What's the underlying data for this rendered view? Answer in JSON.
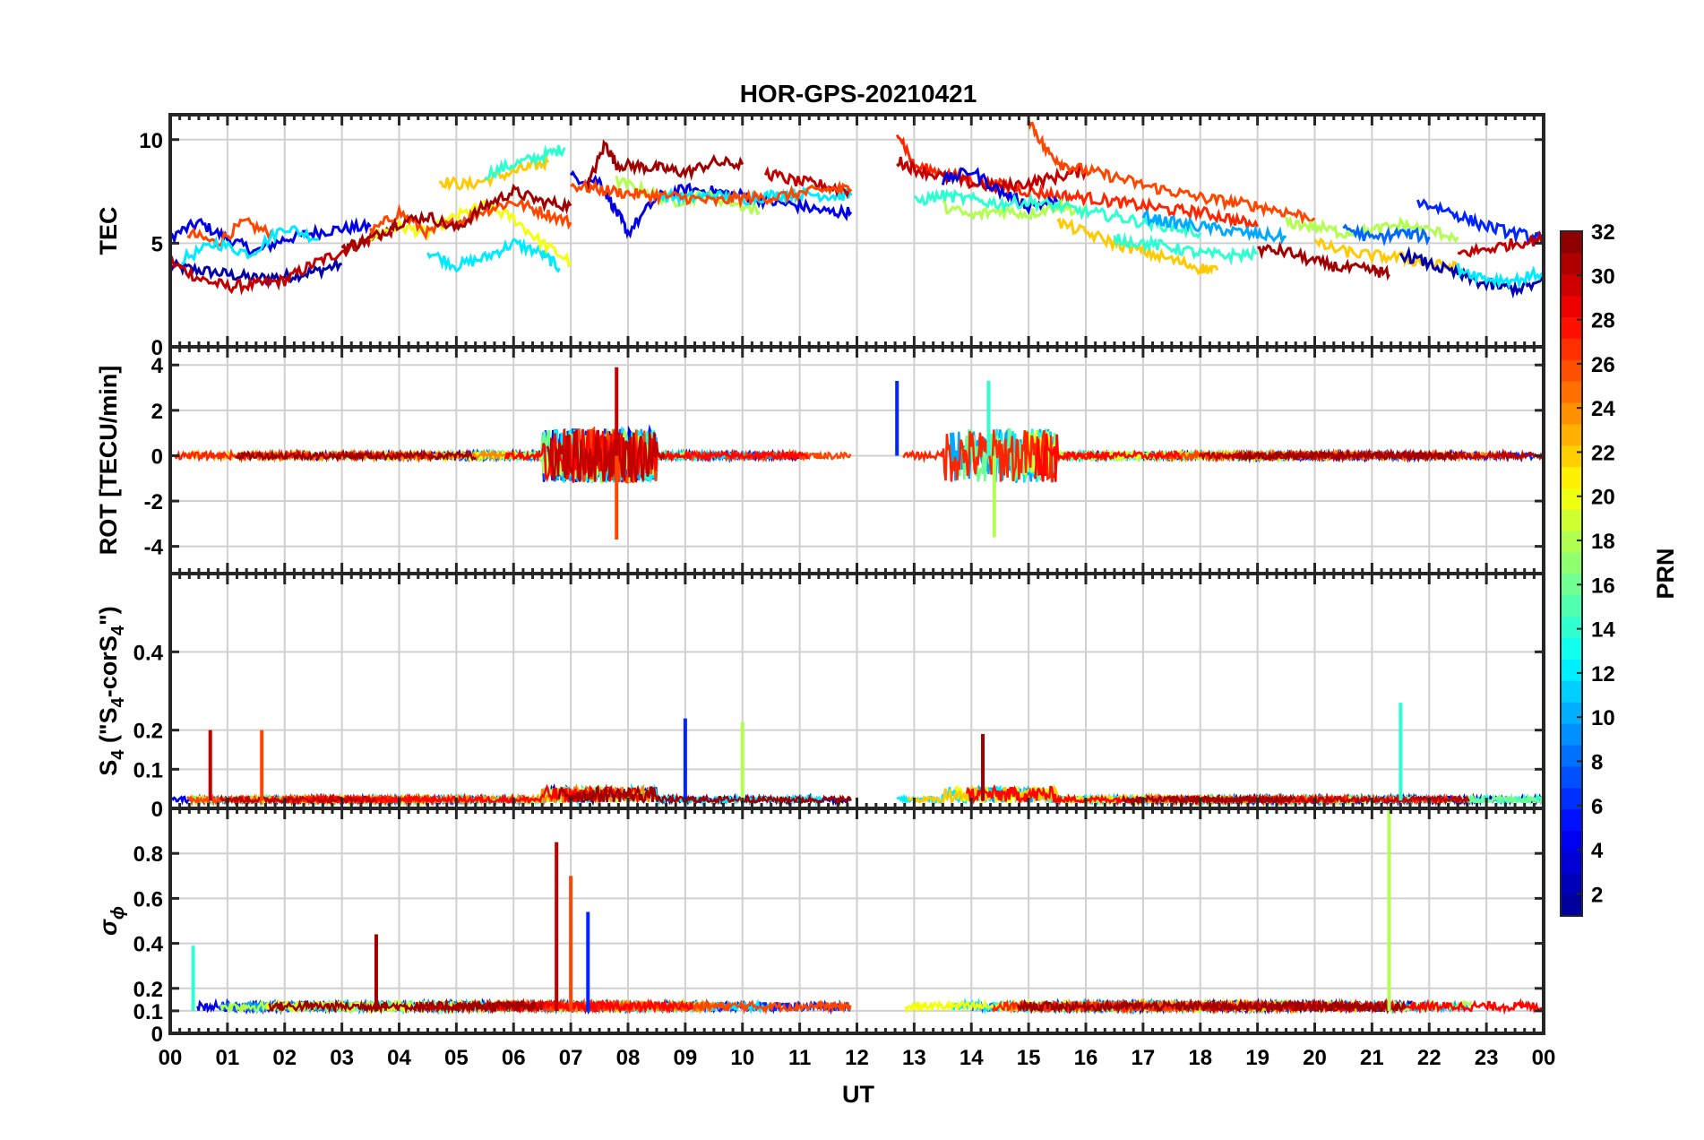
{
  "title": "HOR-GPS-20210421",
  "x_axis": {
    "label": "UT",
    "ticks": [
      "00",
      "01",
      "02",
      "03",
      "04",
      "05",
      "06",
      "07",
      "08",
      "09",
      "10",
      "11",
      "12",
      "13",
      "14",
      "15",
      "16",
      "17",
      "18",
      "19",
      "20",
      "21",
      "22",
      "23",
      "00"
    ],
    "range": [
      0,
      24
    ]
  },
  "colorbar": {
    "label": "PRN",
    "range": [
      1,
      32
    ],
    "ticks": [
      "2",
      "4",
      "6",
      "8",
      "10",
      "12",
      "14",
      "16",
      "18",
      "20",
      "22",
      "24",
      "26",
      "28",
      "30",
      "32"
    ],
    "colormap": [
      "#00008f",
      "#0000ff",
      "#0080ff",
      "#00ffff",
      "#80ff80",
      "#ffff00",
      "#ff8000",
      "#ff0000",
      "#800000"
    ]
  },
  "panels": [
    {
      "id": "tec",
      "ylabel": "TEC",
      "ylim": [
        0,
        11.2
      ],
      "yticks": [
        "0",
        "5",
        "10"
      ],
      "ytick_values": [
        0,
        5,
        10
      ]
    },
    {
      "id": "rot",
      "ylabel": "ROT [TECU/min]",
      "ylim": [
        -5.2,
        4.8
      ],
      "yticks": [
        "-4",
        "-2",
        "0",
        "2",
        "4"
      ],
      "ytick_values": [
        -4,
        -2,
        0,
        2,
        4
      ]
    },
    {
      "id": "s4",
      "ylabel_main": "S",
      "ylabel_sub": "4",
      "ylabel_rest1": " (\"S",
      "ylabel_sub2": "4",
      "ylabel_rest2": "-corS",
      "ylabel_sub3": "4",
      "ylabel_rest3": "\")",
      "ylim": [
        0,
        0.6
      ],
      "yticks": [
        "0",
        "0.1",
        "0.2",
        "0.4"
      ],
      "ytick_values": [
        0,
        0.1,
        0.2,
        0.4
      ]
    },
    {
      "id": "sigma",
      "ylabel_main": "σ",
      "ylabel_sub": "ϕ",
      "ylim": [
        0,
        1.0
      ],
      "yticks": [
        "0",
        "0.1",
        "0.2",
        "0.4",
        "0.6",
        "0.8"
      ],
      "ytick_values": [
        0,
        0.1,
        0.2,
        0.4,
        0.6,
        0.8
      ]
    }
  ],
  "chart_data": {
    "type": "line",
    "title": "HOR-GPS-20210421",
    "xlabel": "UT",
    "xlim": [
      0,
      24
    ],
    "data_gap": [
      11.9,
      12.7
    ],
    "series": [
      {
        "name": "PRN 2",
        "panel": "tec",
        "x": [
          0.0,
          0.5,
          1.0,
          1.5,
          2.0,
          2.5,
          3.0
        ],
        "y": [
          3.9,
          3.7,
          3.5,
          3.3,
          3.4,
          3.6,
          4.0
        ]
      },
      {
        "name": "PRN 4",
        "panel": "tec",
        "x": [
          0.0,
          0.5,
          1.0,
          1.5,
          2.0,
          2.5,
          3.0,
          3.5
        ],
        "y": [
          5.3,
          6.0,
          5.2,
          4.6,
          5.2,
          5.5,
          5.7,
          5.8
        ]
      },
      {
        "name": "PRN 30",
        "panel": "tec",
        "x": [
          0.0,
          0.5,
          1.0,
          1.5,
          2.0,
          2.5,
          3.0,
          3.5,
          4.0
        ],
        "y": [
          4.1,
          3.3,
          2.9,
          3.0,
          3.2,
          4.0,
          4.6,
          5.2,
          5.8
        ]
      },
      {
        "name": "PRN 26",
        "panel": "tec",
        "x": [
          0.3,
          0.8,
          1.3,
          1.8
        ],
        "y": [
          5.5,
          5.0,
          6.0,
          5.4
        ]
      },
      {
        "name": "PRN 12",
        "panel": "tec",
        "x": [
          0.2,
          0.8,
          1.4,
          2.0,
          2.6
        ],
        "y": [
          4.2,
          5.0,
          4.5,
          5.8,
          5.2
        ]
      },
      {
        "name": "PRN 22",
        "panel": "tec",
        "x": [
          4.7,
          5.2,
          5.7,
          6.2,
          6.6
        ],
        "y": [
          8.0,
          7.8,
          8.2,
          8.6,
          8.9
        ]
      },
      {
        "name": "PRN 14",
        "panel": "tec",
        "x": [
          5.5,
          6.0,
          6.5,
          6.9
        ],
        "y": [
          8.3,
          8.8,
          9.2,
          9.6
        ]
      },
      {
        "name": "PRN 12",
        "panel": "tec",
        "x": [
          4.5,
          5.0,
          5.5,
          6.0,
          6.5,
          6.8
        ],
        "y": [
          4.6,
          3.9,
          4.3,
          5.0,
          4.5,
          3.8
        ]
      },
      {
        "name": "PRN 20",
        "panel": "tec",
        "x": [
          3.5,
          4.0,
          4.5,
          5.0,
          5.5,
          6.0,
          6.5,
          7.0
        ],
        "y": [
          5.3,
          5.8,
          5.5,
          6.3,
          6.8,
          6.2,
          5.0,
          4.1
        ]
      },
      {
        "name": "PRN 26",
        "panel": "tec",
        "x": [
          3.5,
          4.0,
          4.5,
          5.0,
          5.5,
          6.0,
          6.5,
          7.0
        ],
        "y": [
          5.5,
          6.5,
          5.5,
          6.0,
          6.6,
          7.0,
          6.5,
          6.0
        ]
      },
      {
        "name": "PRN 31",
        "panel": "tec",
        "x": [
          3.0,
          3.5,
          4.0,
          4.5,
          5.0,
          5.5,
          6.0,
          6.5,
          7.0
        ],
        "y": [
          4.8,
          5.2,
          6.0,
          6.3,
          5.7,
          6.8,
          7.5,
          7.0,
          6.8
        ]
      },
      {
        "name": "PRN 4",
        "panel": "tec",
        "x": [
          7.0,
          7.5,
          7.8,
          8.0,
          8.5,
          9.0,
          9.5,
          10.0,
          10.5,
          11.0,
          11.5,
          11.9
        ],
        "y": [
          8.2,
          8.0,
          6.5,
          5.5,
          7.2,
          7.6,
          7.5,
          7.3,
          7.0,
          6.8,
          6.5,
          6.5
        ]
      },
      {
        "name": "PRN 31",
        "panel": "tec",
        "x": [
          7.3,
          7.6,
          7.8,
          8.2,
          8.6,
          9.0,
          9.5,
          10.0
        ],
        "y": [
          7.8,
          9.8,
          8.8,
          8.7,
          8.6,
          8.4,
          8.9,
          8.8
        ]
      },
      {
        "name": "PRN 18",
        "panel": "tec",
        "x": [
          7.8,
          8.3,
          8.8,
          9.3,
          9.8,
          10.3
        ],
        "y": [
          8.0,
          7.5,
          7.0,
          7.3,
          7.0,
          6.5
        ]
      },
      {
        "name": "PRN 12",
        "panel": "tec",
        "x": [
          8.5,
          9.0,
          9.5,
          10.0,
          10.5,
          11.0,
          11.5,
          11.9
        ],
        "y": [
          7.3,
          7.2,
          7.3,
          7.1,
          7.3,
          7.4,
          7.3,
          7.3
        ]
      },
      {
        "name": "PRN 30",
        "panel": "tec",
        "x": [
          10.4,
          10.9,
          11.4,
          11.9
        ],
        "y": [
          8.4,
          8.0,
          7.8,
          7.5
        ]
      },
      {
        "name": "PRN 26",
        "panel": "tec",
        "x": [
          7.0,
          7.5,
          8.0,
          8.5,
          9.0,
          9.5,
          10.0,
          10.5,
          11.0,
          11.5,
          11.9
        ],
        "y": [
          7.8,
          7.6,
          7.4,
          7.3,
          7.2,
          7.0,
          7.2,
          7.2,
          7.4,
          7.6,
          7.6
        ]
      },
      {
        "name": "PRN 27",
        "panel": "tec",
        "x": [
          12.7,
          13.0,
          13.5,
          14.0,
          14.5,
          15.0,
          15.5,
          16.0,
          16.5,
          17.0,
          17.5,
          18.0,
          18.5,
          19.0
        ],
        "y": [
          10.5,
          8.7,
          8.4,
          8.0,
          7.8,
          7.5,
          7.3,
          7.2,
          7.0,
          6.8,
          6.6,
          6.5,
          6.2,
          5.8
        ]
      },
      {
        "name": "PRN 30",
        "panel": "tec",
        "x": [
          12.7,
          13.0,
          13.5,
          14.0,
          14.5,
          15.0,
          15.5,
          16.0
        ],
        "y": [
          9.0,
          8.6,
          8.2,
          7.9,
          7.7,
          7.9,
          8.2,
          8.5
        ]
      },
      {
        "name": "PRN 26",
        "panel": "tec",
        "x": [
          15.0,
          15.3,
          15.6,
          16.0,
          16.5,
          17.0,
          17.5,
          18.0,
          18.5,
          19.0,
          19.5,
          20.0
        ],
        "y": [
          11.0,
          9.5,
          8.8,
          8.5,
          8.2,
          7.8,
          7.5,
          7.2,
          7.0,
          6.8,
          6.5,
          6.2
        ]
      },
      {
        "name": "PRN 4",
        "panel": "tec",
        "x": [
          13.5,
          14.0,
          14.5,
          15.0,
          15.5
        ],
        "y": [
          8.0,
          8.5,
          7.5,
          6.8,
          7.0
        ]
      },
      {
        "name": "PRN 18",
        "panel": "tec",
        "x": [
          13.5,
          14.0,
          14.5,
          15.0,
          15.5,
          16.0
        ],
        "y": [
          6.8,
          6.3,
          6.6,
          6.4,
          6.8,
          6.5
        ]
      },
      {
        "name": "PRN 14",
        "panel": "tec",
        "x": [
          13.0,
          13.5,
          14.0,
          14.5,
          15.0,
          15.5,
          16.0,
          16.5,
          17.0,
          17.5,
          18.0
        ],
        "y": [
          7.0,
          7.3,
          7.1,
          6.9,
          7.0,
          6.8,
          6.5,
          6.3,
          6.0,
          5.8,
          5.5
        ]
      },
      {
        "name": "PRN 22",
        "panel": "tec",
        "x": [
          15.5,
          16.0,
          16.5,
          17.0,
          17.5,
          18.0,
          18.3
        ],
        "y": [
          6.0,
          5.5,
          5.0,
          4.6,
          4.2,
          3.8,
          3.7
        ]
      },
      {
        "name": "PRN 14",
        "panel": "tec",
        "x": [
          16.5,
          17.0,
          17.5,
          18.0,
          18.5,
          19.0
        ],
        "y": [
          5.2,
          5.0,
          4.8,
          4.5,
          4.4,
          4.5
        ]
      },
      {
        "name": "PRN 10",
        "panel": "tec",
        "x": [
          17.0,
          17.5,
          18.0,
          18.5,
          19.0,
          19.5
        ],
        "y": [
          6.3,
          6.0,
          5.8,
          5.6,
          5.4,
          5.3
        ]
      },
      {
        "name": "PRN 31",
        "panel": "tec",
        "x": [
          19.0,
          19.5,
          20.0,
          20.5,
          21.0,
          21.3
        ],
        "y": [
          4.7,
          4.6,
          4.1,
          3.8,
          3.7,
          3.5
        ]
      },
      {
        "name": "PRN 18",
        "panel": "tec",
        "x": [
          19.5,
          20.0,
          20.5,
          21.0,
          21.5,
          22.0,
          22.5
        ],
        "y": [
          6.0,
          5.8,
          5.5,
          5.6,
          5.9,
          5.6,
          5.3
        ]
      },
      {
        "name": "PRN 22",
        "panel": "tec",
        "x": [
          20.0,
          20.5,
          21.0,
          21.5,
          22.0,
          22.5
        ],
        "y": [
          5.0,
          4.6,
          4.4,
          4.3,
          4.0,
          3.8
        ]
      },
      {
        "name": "PRN 8",
        "panel": "tec",
        "x": [
          20.5,
          21.0,
          21.5,
          22.0
        ],
        "y": [
          5.8,
          5.2,
          5.5,
          5.3
        ]
      },
      {
        "name": "PRN 6",
        "panel": "tec",
        "x": [
          21.8,
          22.3,
          22.8,
          23.3,
          23.8,
          24.0
        ],
        "y": [
          7.0,
          6.6,
          6.0,
          5.6,
          5.3,
          5.2
        ]
      },
      {
        "name": "PRN 2",
        "panel": "tec",
        "x": [
          21.5,
          22.0,
          22.5,
          23.0,
          23.5,
          24.0
        ],
        "y": [
          4.5,
          4.0,
          3.5,
          3.0,
          2.8,
          3.1
        ]
      },
      {
        "name": "PRN 30",
        "panel": "tec",
        "x": [
          22.5,
          23.0,
          23.5,
          24.0
        ],
        "y": [
          4.5,
          4.7,
          5.0,
          5.2
        ]
      },
      {
        "name": "PRN 12",
        "panel": "tec",
        "x": [
          22.5,
          23.0,
          23.5,
          24.0
        ],
        "y": [
          3.8,
          3.3,
          3.2,
          3.6
        ]
      }
    ],
    "extremes": {
      "rot_peaks": [
        {
          "x": 7.8,
          "y": 3.9
        },
        {
          "x": 7.8,
          "y": -3.7
        },
        {
          "x": 12.7,
          "y": 3.3
        },
        {
          "x": 14.4,
          "y": -3.6
        },
        {
          "x": 14.3,
          "y": 3.3
        }
      ],
      "s4_peaks": [
        {
          "x": 0.7,
          "y": 0.2
        },
        {
          "x": 1.6,
          "y": 0.2
        },
        {
          "x": 9.0,
          "y": 0.23
        },
        {
          "x": 10.0,
          "y": 0.22
        },
        {
          "x": 21.5,
          "y": 0.27
        },
        {
          "x": 14.2,
          "y": 0.19
        }
      ],
      "sigma_peaks": [
        {
          "x": 6.75,
          "y": 0.85
        },
        {
          "x": 7.0,
          "y": 0.7
        },
        {
          "x": 7.3,
          "y": 0.54
        },
        {
          "x": 21.3,
          "y": 1.0
        },
        {
          "x": 0.4,
          "y": 0.39
        },
        {
          "x": 3.6,
          "y": 0.44
        }
      ]
    }
  }
}
